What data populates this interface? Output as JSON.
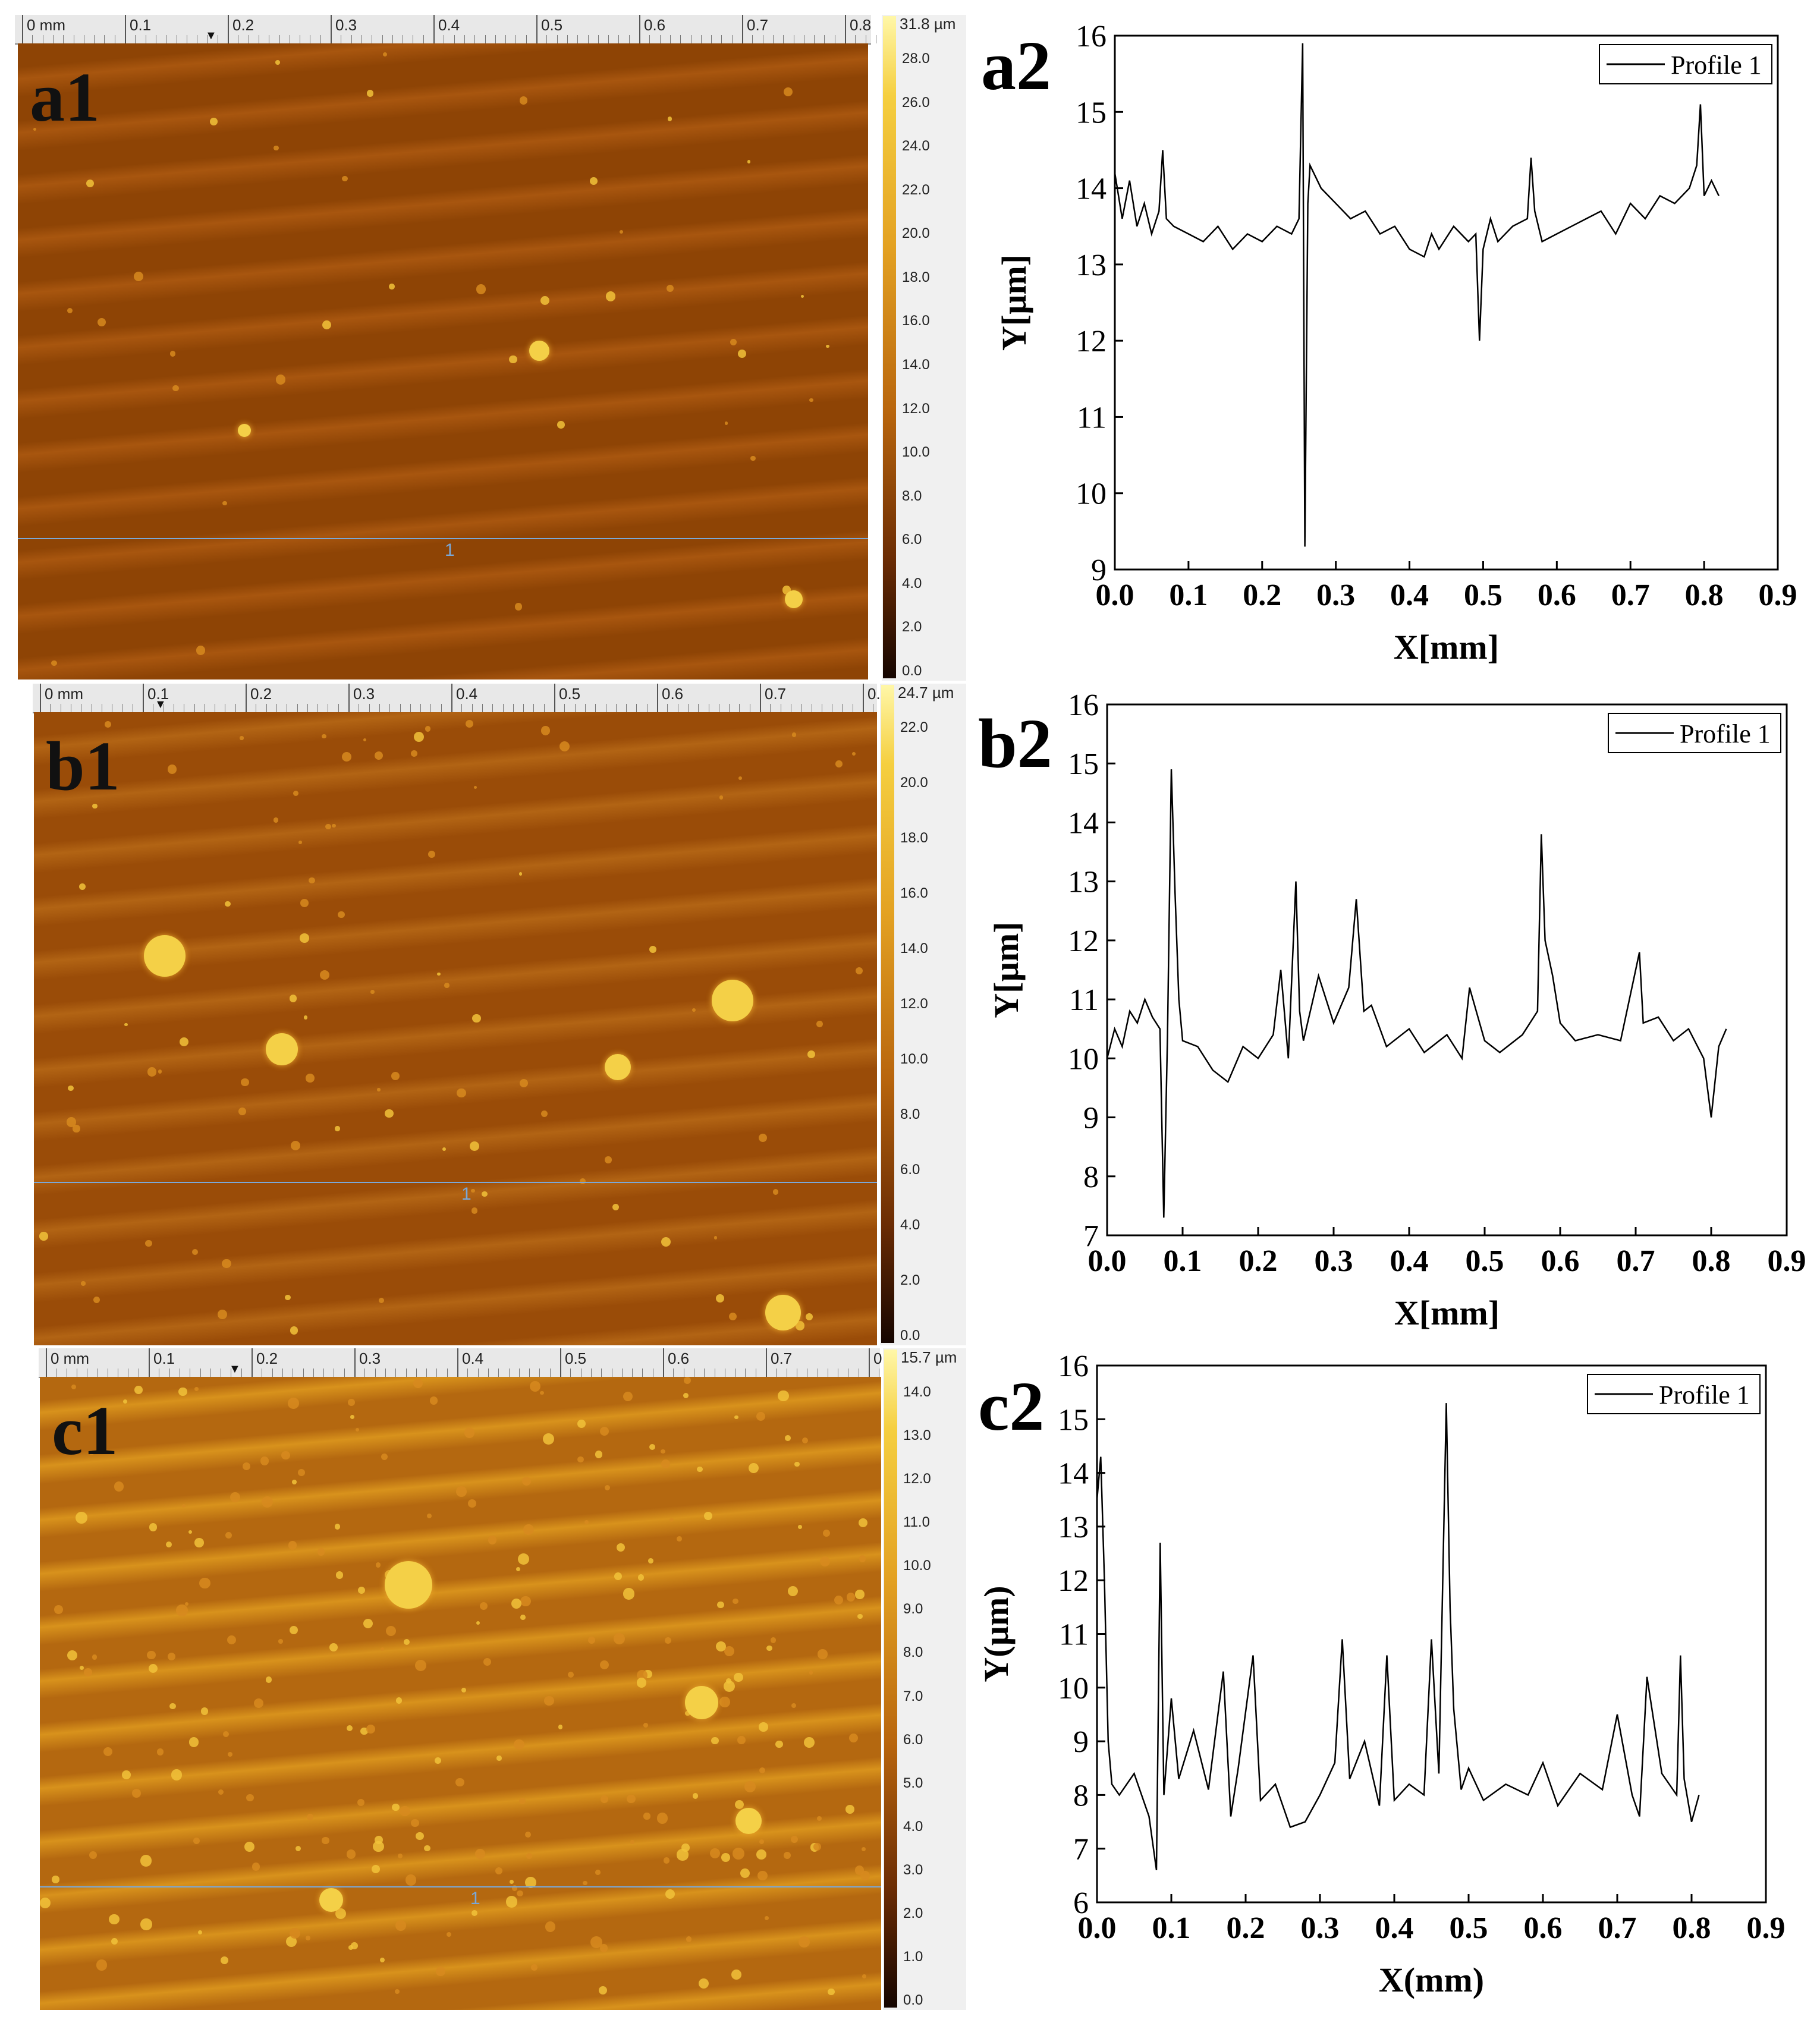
{
  "maps": [
    {
      "label": "a1",
      "scale_max": "31.8 µm",
      "scale_ticks": [
        "28.0",
        "26.0",
        "24.0",
        "22.0",
        "20.0",
        "18.0",
        "16.0",
        "14.0",
        "12.0",
        "10.0",
        "8.0",
        "6.0",
        "4.0",
        "2.0",
        "0.0"
      ],
      "ruler": [
        "0 mm",
        "0.1",
        "0.2",
        "0.3",
        "0.4",
        "0.5",
        "0.6",
        "0.7",
        "0.8"
      ],
      "profile_marker": "1",
      "colors": {
        "base": "#8e4405",
        "light": "#a8560f"
      }
    },
    {
      "label": "b1",
      "scale_max": "24.7 µm",
      "scale_ticks": [
        "22.0",
        "20.0",
        "18.0",
        "16.0",
        "14.0",
        "12.0",
        "10.0",
        "8.0",
        "6.0",
        "4.0",
        "2.0",
        "0.0"
      ],
      "ruler": [
        "0 mm",
        "0.1",
        "0.2",
        "0.3",
        "0.4",
        "0.5",
        "0.6",
        "0.7",
        "0."
      ],
      "profile_marker": "1",
      "colors": {
        "base": "#9a4c08",
        "light": "#b26414"
      }
    },
    {
      "label": "c1",
      "scale_max": "15.7 µm",
      "scale_ticks": [
        "14.0",
        "13.0",
        "12.0",
        "11.0",
        "10.0",
        "9.0",
        "8.0",
        "7.0",
        "6.0",
        "5.0",
        "4.0",
        "3.0",
        "2.0",
        "1.0",
        "0.0"
      ],
      "ruler": [
        "0 mm",
        "0.1",
        "0.2",
        "0.3",
        "0.4",
        "0.5",
        "0.6",
        "0.7",
        "0"
      ],
      "profile_marker": "1",
      "colors": {
        "base": "#b46810",
        "light": "#d8921c"
      }
    }
  ],
  "chart_data": [
    {
      "type": "line",
      "panel_label": "a2",
      "xlabel": "X[mm]",
      "ylabel": "Y[µm]",
      "xlim": [
        0.0,
        0.9
      ],
      "ylim": [
        9,
        16
      ],
      "xticks": [
        "0.0",
        "0.1",
        "0.2",
        "0.3",
        "0.4",
        "0.5",
        "0.6",
        "0.7",
        "0.8",
        "0.9"
      ],
      "yticks": [
        "9",
        "10",
        "11",
        "12",
        "13",
        "14",
        "15",
        "16"
      ],
      "legend": "Profile 1",
      "legend_position": "top-right",
      "series": [
        {
          "name": "Profile 1",
          "x": [
            0.0,
            0.01,
            0.02,
            0.03,
            0.04,
            0.05,
            0.06,
            0.065,
            0.07,
            0.08,
            0.1,
            0.12,
            0.14,
            0.16,
            0.18,
            0.2,
            0.22,
            0.24,
            0.25,
            0.255,
            0.258,
            0.262,
            0.265,
            0.27,
            0.28,
            0.3,
            0.32,
            0.34,
            0.36,
            0.38,
            0.4,
            0.42,
            0.43,
            0.44,
            0.46,
            0.48,
            0.49,
            0.495,
            0.5,
            0.51,
            0.52,
            0.54,
            0.56,
            0.565,
            0.57,
            0.58,
            0.6,
            0.62,
            0.64,
            0.66,
            0.68,
            0.7,
            0.72,
            0.74,
            0.76,
            0.78,
            0.79,
            0.795,
            0.8,
            0.81,
            0.82
          ],
          "values": [
            14.2,
            13.6,
            14.1,
            13.5,
            13.8,
            13.4,
            13.7,
            14.5,
            13.6,
            13.5,
            13.4,
            13.3,
            13.5,
            13.2,
            13.4,
            13.3,
            13.5,
            13.4,
            13.6,
            15.9,
            9.3,
            13.8,
            14.3,
            14.2,
            14.0,
            13.8,
            13.6,
            13.7,
            13.4,
            13.5,
            13.2,
            13.1,
            13.4,
            13.2,
            13.5,
            13.3,
            13.4,
            12.0,
            13.2,
            13.6,
            13.3,
            13.5,
            13.6,
            14.4,
            13.7,
            13.3,
            13.4,
            13.5,
            13.6,
            13.7,
            13.4,
            13.8,
            13.6,
            13.9,
            13.8,
            14.0,
            14.3,
            15.1,
            13.9,
            14.1,
            13.9
          ]
        }
      ]
    },
    {
      "type": "line",
      "panel_label": "b2",
      "xlabel": "X[mm]",
      "ylabel": "Y[µm]",
      "xlim": [
        0.0,
        0.9
      ],
      "ylim": [
        7,
        16
      ],
      "xticks": [
        "0.0",
        "0.1",
        "0.2",
        "0.3",
        "0.4",
        "0.5",
        "0.6",
        "0.7",
        "0.8",
        "0.9"
      ],
      "yticks": [
        "7",
        "8",
        "9",
        "10",
        "11",
        "12",
        "13",
        "14",
        "15",
        "16"
      ],
      "legend": "Profile 1",
      "legend_position": "top-right",
      "series": [
        {
          "name": "Profile 1",
          "x": [
            0.0,
            0.01,
            0.02,
            0.03,
            0.04,
            0.05,
            0.06,
            0.07,
            0.075,
            0.08,
            0.085,
            0.09,
            0.095,
            0.1,
            0.12,
            0.14,
            0.16,
            0.18,
            0.2,
            0.22,
            0.23,
            0.24,
            0.25,
            0.255,
            0.26,
            0.28,
            0.3,
            0.32,
            0.33,
            0.34,
            0.35,
            0.37,
            0.4,
            0.42,
            0.45,
            0.47,
            0.48,
            0.5,
            0.52,
            0.55,
            0.57,
            0.575,
            0.58,
            0.59,
            0.6,
            0.62,
            0.65,
            0.68,
            0.7,
            0.705,
            0.71,
            0.73,
            0.75,
            0.77,
            0.79,
            0.8,
            0.81,
            0.82
          ],
          "values": [
            10.0,
            10.5,
            10.2,
            10.8,
            10.6,
            11.0,
            10.7,
            10.5,
            7.3,
            10.4,
            14.9,
            12.8,
            11.0,
            10.3,
            10.2,
            9.8,
            9.6,
            10.2,
            10.0,
            10.4,
            11.5,
            10.0,
            13.0,
            10.8,
            10.3,
            11.4,
            10.6,
            11.2,
            12.7,
            10.8,
            10.9,
            10.2,
            10.5,
            10.1,
            10.4,
            10.0,
            11.2,
            10.3,
            10.1,
            10.4,
            10.8,
            13.8,
            12.0,
            11.4,
            10.6,
            10.3,
            10.4,
            10.3,
            11.5,
            11.8,
            10.6,
            10.7,
            10.3,
            10.5,
            10.0,
            9.0,
            10.2,
            10.5
          ]
        }
      ]
    },
    {
      "type": "line",
      "panel_label": "c2",
      "xlabel": "X(mm)",
      "ylabel": "Y(µm)",
      "xlim": [
        0.0,
        0.9
      ],
      "ylim": [
        6,
        16
      ],
      "xticks": [
        "0.0",
        "0.1",
        "0.2",
        "0.3",
        "0.4",
        "0.5",
        "0.6",
        "0.7",
        "0.8",
        "0.9"
      ],
      "yticks": [
        "6",
        "7",
        "8",
        "9",
        "10",
        "11",
        "12",
        "13",
        "14",
        "15",
        "16"
      ],
      "legend": "Profile 1",
      "legend_position": "top-right",
      "series": [
        {
          "name": "Profile 1",
          "x": [
            0.0,
            0.005,
            0.01,
            0.015,
            0.02,
            0.03,
            0.05,
            0.07,
            0.08,
            0.085,
            0.09,
            0.1,
            0.11,
            0.13,
            0.15,
            0.17,
            0.18,
            0.19,
            0.21,
            0.22,
            0.24,
            0.26,
            0.28,
            0.3,
            0.32,
            0.33,
            0.34,
            0.36,
            0.38,
            0.39,
            0.4,
            0.42,
            0.44,
            0.45,
            0.46,
            0.47,
            0.475,
            0.48,
            0.49,
            0.5,
            0.52,
            0.55,
            0.58,
            0.6,
            0.62,
            0.65,
            0.68,
            0.7,
            0.72,
            0.73,
            0.74,
            0.76,
            0.78,
            0.785,
            0.79,
            0.8,
            0.81
          ],
          "values": [
            13.5,
            14.3,
            12.0,
            9.0,
            8.2,
            8.0,
            8.4,
            7.6,
            6.6,
            12.7,
            8.0,
            9.8,
            8.3,
            9.2,
            8.1,
            10.3,
            7.6,
            8.5,
            10.6,
            7.9,
            8.2,
            7.4,
            7.5,
            8.0,
            8.6,
            10.9,
            8.3,
            9.0,
            7.8,
            10.6,
            7.9,
            8.2,
            8.0,
            10.9,
            8.4,
            15.3,
            11.5,
            9.6,
            8.1,
            8.5,
            7.9,
            8.2,
            8.0,
            8.6,
            7.8,
            8.4,
            8.1,
            9.5,
            8.0,
            7.6,
            10.2,
            8.4,
            8.0,
            10.6,
            8.3,
            7.5,
            8.0
          ]
        }
      ]
    }
  ]
}
